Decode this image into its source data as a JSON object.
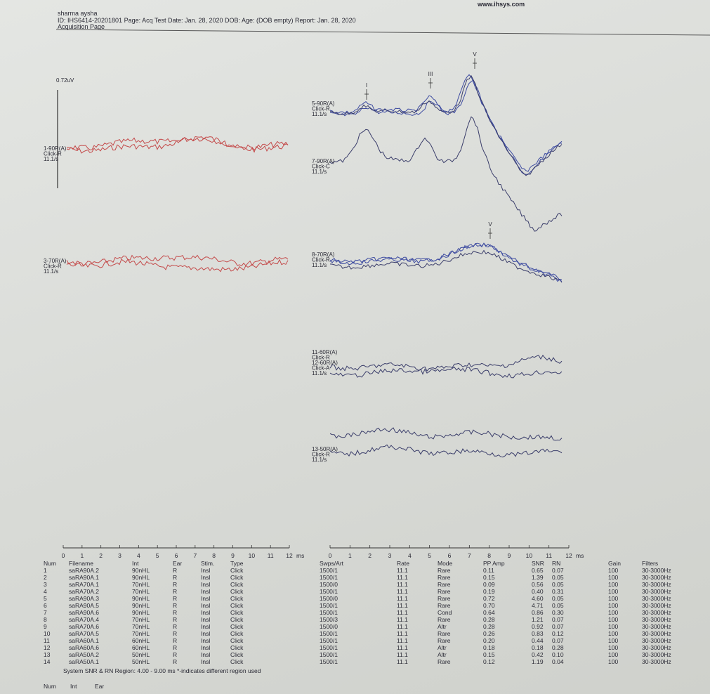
{
  "header": {
    "site": "www.ihsys.com",
    "patient": "sharma aysha",
    "info": "ID: IHS6414-20201801 Page: Acq  Test Date: Jan. 28, 2020 DOB:  Age: (DOB empty)  Report: Jan. 28, 2020",
    "page": "Acquisition Page"
  },
  "left_panel": {
    "scale": "0.72uV",
    "groups": [
      {
        "labels": [
          "1-90R(A)",
          "Click-R",
          "11.1/s"
        ]
      },
      {
        "labels": [
          "3-70R(A)",
          "Click-R",
          "11.1/s"
        ]
      }
    ]
  },
  "right_panel": {
    "groups": [
      {
        "labels": [
          "5-90R(A)",
          "Click-R",
          "11.1/s"
        ]
      },
      {
        "labels": [
          "7-90R(A)",
          "Click-C",
          "11.1/s"
        ]
      },
      {
        "labels": [
          "8-70R(A)",
          "Click-R",
          "11.1/s"
        ]
      },
      {
        "labels": [
          "11-60R(A)",
          "Click-R",
          "12-60R(A)",
          "Click-A",
          "11.1/s"
        ]
      },
      {
        "labels": [
          "13-50R(A)",
          "Click-R",
          "11.1/s"
        ]
      }
    ],
    "peaks": [
      "I",
      "III",
      "V",
      "V"
    ]
  },
  "axis": {
    "ticks": [
      "0",
      "1",
      "2",
      "3",
      "4",
      "5",
      "6",
      "7",
      "8",
      "9",
      "10",
      "11",
      "12"
    ],
    "unit": "ms"
  },
  "table": {
    "columns": [
      "Num",
      "Filename",
      "Int",
      "Ear",
      "Stim.",
      "Type",
      "Swps/Art",
      "Rate",
      "Mode",
      "PP Amp",
      "SNR",
      "RN",
      "Gain",
      "Filters"
    ],
    "rows": [
      [
        "1",
        "saRA90A.2",
        "90nHL",
        "R",
        "Insl",
        "Click",
        "1500/1",
        "11.1",
        "Rare",
        "0.11",
        "0.65",
        "0.07",
        "100",
        "30-3000Hz"
      ],
      [
        "2",
        "saRA90A.1",
        "90nHL",
        "R",
        "Insl",
        "Click",
        "1500/1",
        "11.1",
        "Rare",
        "0.15",
        "1.39",
        "0.05",
        "100",
        "30-3000Hz"
      ],
      [
        "3",
        "saRA70A.1",
        "70nHL",
        "R",
        "Insl",
        "Click",
        "1500/0",
        "11.1",
        "Rare",
        "0.09",
        "0.56",
        "0.05",
        "100",
        "30-3000Hz"
      ],
      [
        "4",
        "saRA70A.2",
        "70nHL",
        "R",
        "Insl",
        "Click",
        "1500/1",
        "11.1",
        "Rare",
        "0.19",
        "0.40",
        "0.31",
        "100",
        "30-3000Hz"
      ],
      [
        "5",
        "saRA90A.3",
        "90nHL",
        "R",
        "Insl",
        "Click",
        "1500/0",
        "11.1",
        "Rare",
        "0.72",
        "4.60",
        "0.05",
        "100",
        "30-3000Hz"
      ],
      [
        "6",
        "saRA90A.5",
        "90nHL",
        "R",
        "Insl",
        "Click",
        "1500/1",
        "11.1",
        "Rare",
        "0.70",
        "4.71",
        "0.05",
        "100",
        "30-3000Hz"
      ],
      [
        "7",
        "saRA90A.6",
        "90nHL",
        "R",
        "Insl",
        "Click",
        "1500/1",
        "11.1",
        "Cond",
        "0.64",
        "0.86",
        "0.30",
        "100",
        "30-3000Hz"
      ],
      [
        "8",
        "saRA70A.4",
        "70nHL",
        "R",
        "Insl",
        "Click",
        "1500/3",
        "11.1",
        "Rare",
        "0.28",
        "1.21",
        "0.07",
        "100",
        "30-3000Hz"
      ],
      [
        "9",
        "saRA70A.6",
        "70nHL",
        "R",
        "Insl",
        "Click",
        "1500/0",
        "11.1",
        "Altr",
        "0.28",
        "0.92",
        "0.07",
        "100",
        "30-3000Hz"
      ],
      [
        "10",
        "saRA70A.5",
        "70nHL",
        "R",
        "Insl",
        "Click",
        "1500/1",
        "11.1",
        "Rare",
        "0.26",
        "0.83",
        "0.12",
        "100",
        "30-3000Hz"
      ],
      [
        "11",
        "saRA60A.1",
        "60nHL",
        "R",
        "Insl",
        "Click",
        "1500/1",
        "11.1",
        "Rare",
        "0.20",
        "0.44",
        "0.07",
        "100",
        "30-3000Hz"
      ],
      [
        "12",
        "saRA60A.6",
        "60nHL",
        "R",
        "Insl",
        "Click",
        "1500/1",
        "11.1",
        "Altr",
        "0.18",
        "0.18",
        "0.28",
        "100",
        "30-3000Hz"
      ],
      [
        "13",
        "saRA50A.2",
        "50nHL",
        "R",
        "Insl",
        "Click",
        "1500/1",
        "11.1",
        "Altr",
        "0.15",
        "0.42",
        "0.10",
        "100",
        "30-3000Hz"
      ],
      [
        "14",
        "saRA50A.1",
        "50nHL",
        "R",
        "Insl",
        "Click",
        "1500/1",
        "11.1",
        "Rare",
        "0.12",
        "1.19",
        "0.04",
        "100",
        "30-3000Hz"
      ]
    ]
  },
  "footer": {
    "note": "System SNR & RN Region: 4.00 - 9.00 ms  *-indicates different region used",
    "next_columns": [
      "Num",
      "Int",
      "Ear"
    ]
  }
}
